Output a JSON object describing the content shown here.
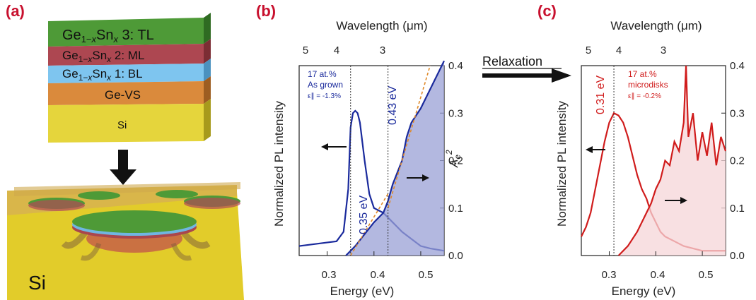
{
  "labels": {
    "a": "(a)",
    "b": "(b)",
    "c": "(c)"
  },
  "schematic": {
    "layers": [
      {
        "name": "tl",
        "html": "Ge<sub>1−x</sub>Sn<sub>x</sub> 3: TL",
        "color": "#3f8a2e"
      },
      {
        "name": "ml",
        "html": "Ge<sub>1−x</sub>Sn<sub>x</sub> 2: ML",
        "color": "#b04a55"
      },
      {
        "name": "bl",
        "html": "Ge<sub>1−x</sub>Sn<sub>x</sub> 1: BL",
        "color": "#7ec3ea"
      },
      {
        "name": "ge-vs",
        "text": "Ge-VS",
        "color": "#d9893f"
      },
      {
        "name": "si",
        "text": "Si",
        "color": "#e6d43a"
      }
    ],
    "substrate_label": "Si",
    "arrow": "down-arrow"
  },
  "relaxation": "Relaxation",
  "panel_b": {
    "wavelength_title": "Wavelength (μm)",
    "wavelength_ticks": [
      "5",
      "4",
      "3"
    ],
    "energy_title": "Energy (eV)",
    "energy_ticks": [
      "0.3",
      "0.4",
      "0.5"
    ],
    "left_title": "Normalized PL intensity",
    "right_title": "A",
    "right_ticks": [
      "0.0",
      "0.1",
      "0.2",
      "0.3",
      "0.4"
    ],
    "annot_line1": "17 at.%",
    "annot_line2": "As grown",
    "annot_line3": "ε∥ = -1.3%",
    "label_035": "0.35 eV",
    "label_043": "0.43 eV"
  },
  "panel_c": {
    "wavelength_title": "Wavelength (μm)",
    "wavelength_ticks": [
      "5",
      "4",
      "3"
    ],
    "energy_title": "Energy (eV)",
    "energy_ticks": [
      "0.3",
      "0.4",
      "0.5"
    ],
    "left_title": "Normalized PL intensity",
    "right_ticks": [
      "0.0",
      "0.1",
      "0.2",
      "0.3",
      "0.4"
    ],
    "annot_line1": "17 at.%",
    "annot_line2": "microdisks",
    "annot_line3": "ε∥ = -0.2%",
    "label_031": "0.31 eV"
  },
  "chart_data": [
    {
      "type": "line",
      "panel": "b",
      "xlim": [
        0.24,
        0.55
      ],
      "ylim_right": [
        0,
        0.4
      ],
      "vlines": [
        0.35,
        0.43
      ],
      "series": [
        {
          "color": "#1a2a9c",
          "x": [
            0.24,
            0.28,
            0.32,
            0.335,
            0.345,
            0.35,
            0.355,
            0.36,
            0.365,
            0.37,
            0.38,
            0.39,
            0.4,
            0.41,
            0.42,
            0.43,
            0.44,
            0.45,
            0.46,
            0.48,
            0.5,
            0.52,
            0.55
          ],
          "y": [
            0.02,
            0.025,
            0.03,
            0.05,
            0.14,
            0.27,
            0.3,
            0.305,
            0.3,
            0.28,
            0.2,
            0.13,
            0.1,
            0.095,
            0.09,
            0.08,
            0.07,
            0.06,
            0.05,
            0.035,
            0.02,
            0.015,
            0.01
          ]
        },
        {
          "color": "#1a2a9c",
          "fill": "#9aa0d6",
          "x": [
            0.34,
            0.36,
            0.38,
            0.4,
            0.42,
            0.43,
            0.44,
            0.46,
            0.47,
            0.48,
            0.5,
            0.52,
            0.54,
            0.55
          ],
          "y": [
            0.0,
            0.02,
            0.045,
            0.07,
            0.09,
            0.115,
            0.15,
            0.2,
            0.25,
            0.28,
            0.31,
            0.35,
            0.39,
            0.41
          ]
        },
        {
          "color": "#e08a2a",
          "dashed": true,
          "x": [
            0.35,
            0.43
          ],
          "y": [
            0.0,
            0.13
          ]
        },
        {
          "color": "#e08a2a",
          "dashed": true,
          "x": [
            0.43,
            0.52
          ],
          "y": [
            0.1,
            0.4
          ]
        }
      ]
    },
    {
      "type": "line",
      "panel": "c",
      "xlim": [
        0.24,
        0.55
      ],
      "ylim_right": [
        0,
        0.4
      ],
      "vlines": [
        0.31
      ],
      "series": [
        {
          "color": "#d01c1c",
          "x": [
            0.24,
            0.25,
            0.26,
            0.27,
            0.28,
            0.29,
            0.3,
            0.31,
            0.32,
            0.33,
            0.34,
            0.35,
            0.36,
            0.37,
            0.38,
            0.39,
            0.4,
            0.41,
            0.42,
            0.44,
            0.46,
            0.48,
            0.5,
            0.52,
            0.55
          ],
          "y": [
            0.04,
            0.06,
            0.09,
            0.14,
            0.19,
            0.24,
            0.28,
            0.3,
            0.295,
            0.28,
            0.25,
            0.21,
            0.17,
            0.14,
            0.12,
            0.09,
            0.07,
            0.05,
            0.04,
            0.03,
            0.02,
            0.015,
            0.01,
            0.01,
            0.01
          ]
        },
        {
          "color": "#d01c1c",
          "fill": "#f6d6d8",
          "x": [
            0.32,
            0.34,
            0.36,
            0.38,
            0.39,
            0.4,
            0.41,
            0.42,
            0.43,
            0.44,
            0.45,
            0.46,
            0.465,
            0.47,
            0.48,
            0.49,
            0.5,
            0.51,
            0.52,
            0.53,
            0.54,
            0.55
          ],
          "y": [
            0.0,
            0.02,
            0.05,
            0.09,
            0.11,
            0.14,
            0.16,
            0.2,
            0.19,
            0.24,
            0.22,
            0.28,
            0.4,
            0.25,
            0.3,
            0.2,
            0.26,
            0.21,
            0.28,
            0.19,
            0.25,
            0.22
          ]
        }
      ]
    }
  ]
}
